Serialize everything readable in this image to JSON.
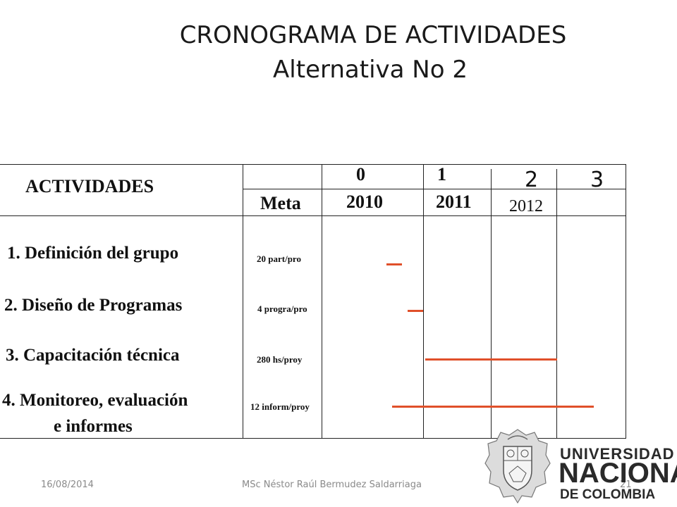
{
  "title": {
    "line1": "CRONOGRAMA DE ACTIVIDADES",
    "line2": "Alternativa No 2"
  },
  "table": {
    "header": {
      "activities_label": "ACTIVIDADES",
      "meta_label": "Meta",
      "periods": [
        {
          "number": "0",
          "year": "2010"
        },
        {
          "number": "1",
          "year": "2011"
        },
        {
          "number": "2",
          "year": "2012"
        },
        {
          "number": "3",
          "year": ""
        }
      ]
    },
    "rows": [
      {
        "activity": "1. Definición del grupo",
        "meta": "20 part/pro"
      },
      {
        "activity": "2. Diseño de Programas",
        "meta": "4 progra/pro"
      },
      {
        "activity": "3. Capacitación técnica",
        "meta": "280 hs/proy"
      },
      {
        "activity_line1": "4. Monitoreo, evaluación",
        "activity_line2": "e informes",
        "meta": "12 inform/proy"
      }
    ],
    "bar_color": "#e0502a"
  },
  "footer": {
    "date": "16/08/2014",
    "author": "MSc Néstor Raúl Bermudez Saldarriaga",
    "page_number": "21"
  },
  "logo": {
    "line1": "UNIVERSIDAD",
    "line2": "NACIONAL",
    "line3": "DE COLOMBIA"
  }
}
